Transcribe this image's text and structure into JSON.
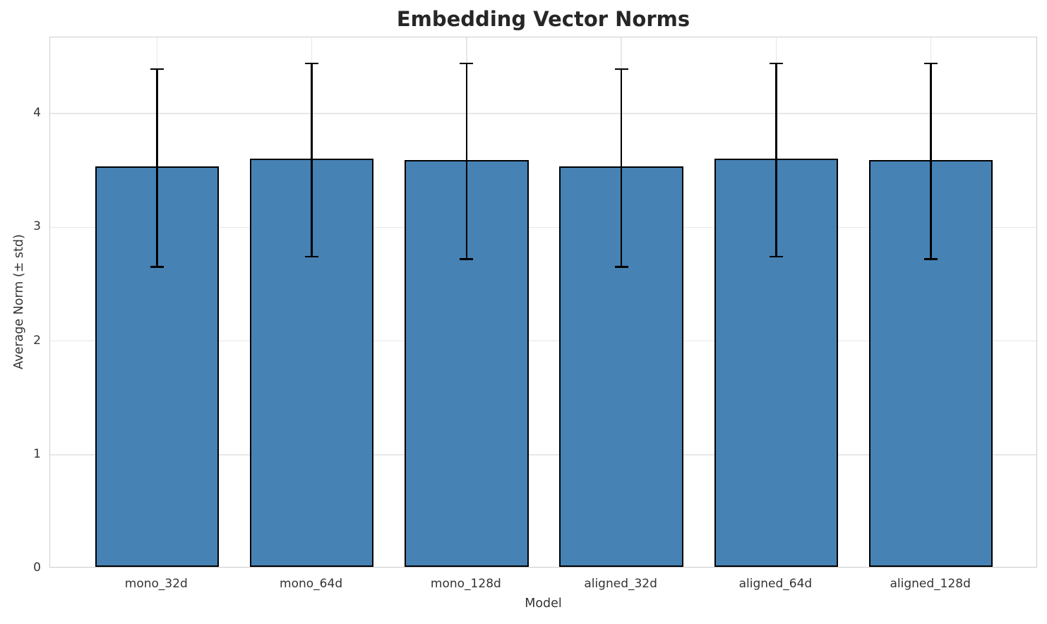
{
  "chart_data": {
    "type": "bar",
    "title": "Embedding Vector Norms",
    "xlabel": "Model",
    "ylabel": "Average Norm (± std)",
    "categories": [
      "mono_32d",
      "mono_64d",
      "mono_128d",
      "aligned_32d",
      "aligned_64d",
      "aligned_128d"
    ],
    "series": [
      {
        "name": "Average Norm",
        "values": [
          3.52,
          3.59,
          3.58,
          3.52,
          3.59,
          3.58
        ],
        "errors": [
          0.87,
          0.85,
          0.86,
          0.87,
          0.85,
          0.86
        ]
      }
    ],
    "ylim": [
      0,
      4.67
    ],
    "xlim": [
      -0.69,
      5.69
    ],
    "yticks": [
      0,
      1,
      2,
      3,
      4
    ],
    "bar_width": 0.8,
    "grid": true,
    "legend": false,
    "bar_color": "#4682B4",
    "bar_edge_color": "#000000",
    "error_color": "#000000",
    "grid_color": "#e7e7e7",
    "spine_color": "#cccccc",
    "text_color": "#333333",
    "title_color": "#262626"
  }
}
